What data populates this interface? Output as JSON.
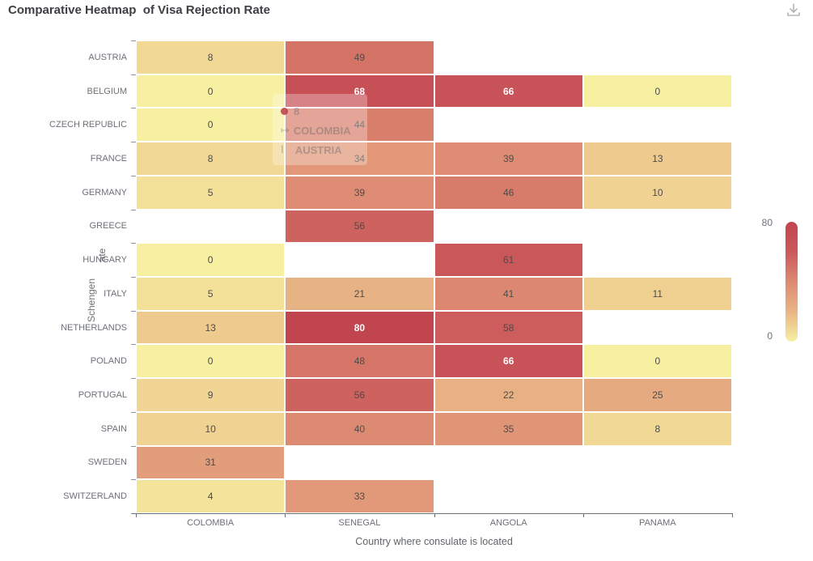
{
  "header": {
    "title": "Comparative Heatmap  of Visa Rejection Rate"
  },
  "chart_data": {
    "type": "heatmap",
    "title": "Comparative Heatmap  of Visa Rejection Rate",
    "x_categories": [
      "COLOMBIA",
      "SENEGAL",
      "ANGOLA",
      "PANAMA"
    ],
    "y_categories": [
      "AUSTRIA",
      "BELGIUM",
      "CZECH REPUBLIC",
      "FRANCE",
      "GERMANY",
      "GREECE",
      "HUNGARY",
      "ITALY",
      "NETHERLANDS",
      "POLAND",
      "PORTUGAL",
      "SPAIN",
      "SWEDEN",
      "SWITZERLAND"
    ],
    "xlabel": "Country where consulate is located",
    "ylabel_lines": [
      "Schengen",
      "ate"
    ],
    "values": [
      [
        8,
        49,
        null,
        null
      ],
      [
        0,
        68,
        66,
        0
      ],
      [
        0,
        44,
        null,
        null
      ],
      [
        8,
        34,
        39,
        13
      ],
      [
        5,
        39,
        46,
        10
      ],
      [
        null,
        56,
        null,
        null
      ],
      [
        0,
        null,
        61,
        null
      ],
      [
        5,
        21,
        41,
        11
      ],
      [
        13,
        80,
        58,
        null
      ],
      [
        0,
        48,
        66,
        0
      ],
      [
        9,
        56,
        22,
        25
      ],
      [
        10,
        40,
        35,
        8
      ],
      [
        31,
        null,
        null,
        null
      ],
      [
        4,
        33,
        null,
        null
      ]
    ],
    "value_range": [
      0,
      80
    ],
    "white_label_threshold": 65,
    "colorscale": [
      {
        "value": 0,
        "color": "#f6f0a0"
      },
      {
        "value": 20,
        "color": "#e9b585"
      },
      {
        "value": 40,
        "color": "#dd8a72"
      },
      {
        "value": 60,
        "color": "#ca585a"
      },
      {
        "value": 80,
        "color": "#c0454f"
      }
    ],
    "legend": {
      "max_label": "80",
      "min_label": "0",
      "position": "right"
    }
  },
  "tooltip": {
    "value": "8",
    "x_icon": "↦",
    "x_label": "COLOMBIA",
    "y_icon": "Ⅰ",
    "y_label": "AUSTRIA",
    "marker_color": "#c0454f"
  }
}
